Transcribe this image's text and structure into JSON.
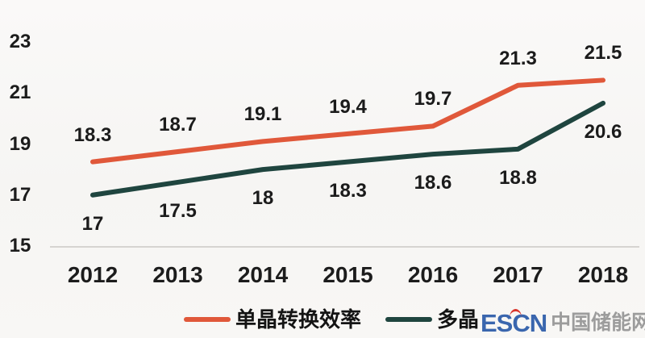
{
  "chart_data": {
    "type": "line",
    "title": "",
    "xlabel": "",
    "ylabel": "",
    "categories": [
      "2012",
      "2013",
      "2014",
      "2015",
      "2016",
      "2017",
      "2018"
    ],
    "series": [
      {
        "name": "单晶转换效率",
        "values": [
          18.3,
          18.7,
          19.1,
          19.4,
          19.7,
          21.3,
          21.5
        ],
        "color": "#e0583a",
        "label_position": "above"
      },
      {
        "name": "多晶",
        "values": [
          17,
          17.5,
          18,
          18.3,
          18.6,
          18.8,
          20.6
        ],
        "color": "#1f453f",
        "label_position": "below"
      }
    ],
    "yticks": [
      23,
      21,
      19,
      17,
      15
    ],
    "ylim": [
      15,
      23
    ],
    "grid": false,
    "data_labels": true,
    "legend_position": "bottom",
    "axis_line_color": "#d6d4d1",
    "text_color": "#1c1c1c"
  },
  "watermark": {
    "brand": "ESCN",
    "name": "中国储能网",
    "brand_color": "#3a66ae",
    "accent_color": "#d9342b",
    "name_color": "#9c9c9c"
  }
}
